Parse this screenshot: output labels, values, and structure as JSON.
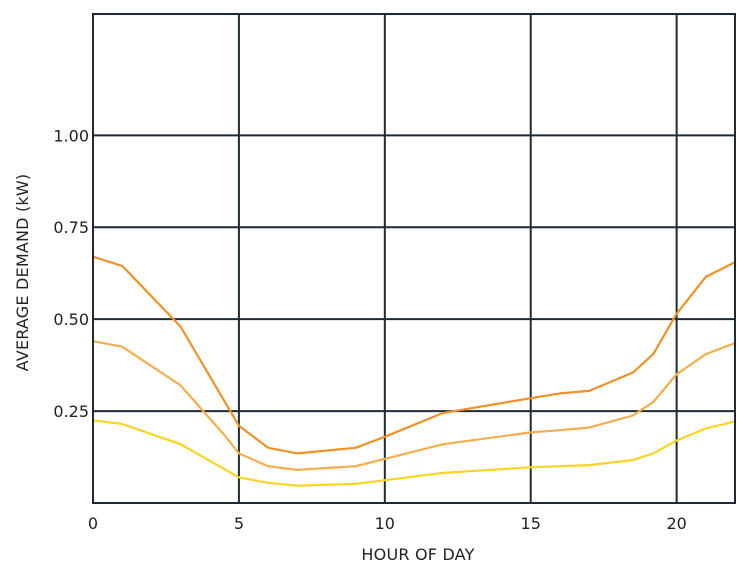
{
  "chart_data": {
    "type": "line",
    "title": "",
    "xlabel": "HOUR OF DAY",
    "ylabel": "AVERAGE DEMAND (kW)",
    "xlim": [
      0,
      22
    ],
    "ylim": [
      0,
      1.33
    ],
    "x_ticks": [
      0,
      5,
      10,
      15,
      20
    ],
    "x_tick_labels": [
      "0",
      "5",
      "10",
      "15",
      "20"
    ],
    "y_ticks": [
      0.25,
      0.5,
      0.75,
      1.0
    ],
    "y_tick_labels": [
      "0.25",
      "0.50",
      "0.75",
      "1.00"
    ],
    "grid": true,
    "legend": "none",
    "series": [
      {
        "color": "#ee9127",
        "x": [
          0,
          1,
          3,
          5,
          6,
          7,
          9,
          10,
          12,
          15,
          16,
          17,
          18.5,
          19.2,
          20,
          21,
          22
        ],
        "values": [
          0.67,
          0.645,
          0.48,
          0.21,
          0.15,
          0.135,
          0.15,
          0.18,
          0.245,
          0.285,
          0.298,
          0.305,
          0.355,
          0.405,
          0.515,
          0.615,
          0.655
        ]
      },
      {
        "color": "#f4ad4c",
        "x": [
          0,
          1,
          3,
          4.5,
          5,
          6,
          7,
          9,
          10,
          12,
          15,
          16,
          17,
          18.5,
          19.2,
          20,
          21,
          22
        ],
        "values": [
          0.44,
          0.425,
          0.32,
          0.185,
          0.135,
          0.1,
          0.09,
          0.1,
          0.12,
          0.16,
          0.192,
          0.198,
          0.205,
          0.238,
          0.275,
          0.35,
          0.405,
          0.435
        ]
      },
      {
        "color": "#fad421",
        "x": [
          0,
          1,
          3,
          5,
          6,
          7,
          9,
          10,
          12,
          15,
          16,
          17,
          18.5,
          19.2,
          20,
          21,
          22
        ],
        "values": [
          0.225,
          0.215,
          0.16,
          0.07,
          0.055,
          0.047,
          0.052,
          0.062,
          0.082,
          0.097,
          0.1,
          0.103,
          0.117,
          0.135,
          0.17,
          0.203,
          0.222
        ]
      }
    ]
  }
}
